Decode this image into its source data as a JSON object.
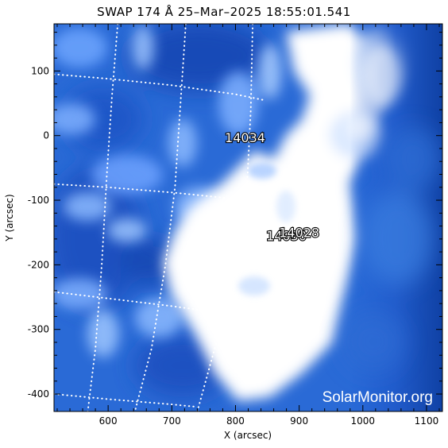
{
  "chart_data": {
    "type": "image",
    "title": "SWAP 174 Å 25–Mar–2025 18:55:01.541",
    "xlabel": "X (arcsec)",
    "ylabel": "Y (arcsec)",
    "xlim": [
      515,
      1125
    ],
    "ylim": [
      -427,
      173
    ],
    "xticks": [
      600,
      700,
      800,
      900,
      1000,
      1100
    ],
    "yticks": [
      100,
      0,
      -100,
      -200,
      -300,
      -400
    ],
    "active_regions": [
      {
        "label": "14034",
        "x": 815,
        "y": -10
      },
      {
        "label": "14030",
        "x": 880,
        "y": -162
      },
      {
        "label": "14028",
        "x": 900,
        "y": -157
      }
    ],
    "colormap": [
      "#0a2e8a",
      "#1f5fd0",
      "#7fb3ff",
      "#ffffff"
    ],
    "watermark": "SolarMonitor.org",
    "grid_style": "dotted white heliographic lines"
  }
}
